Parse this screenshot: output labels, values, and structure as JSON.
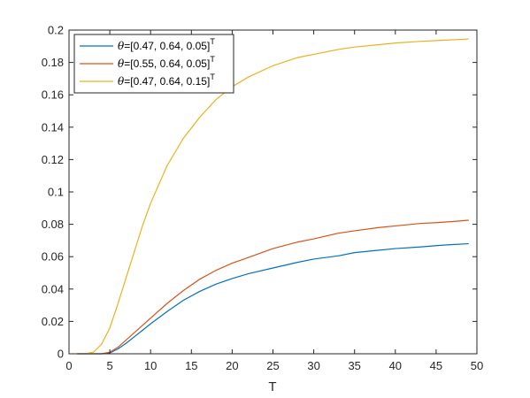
{
  "chart_data": {
    "type": "line",
    "xlabel": "T",
    "ylabel": "",
    "xlim": [
      0,
      50
    ],
    "ylim": [
      0,
      0.2
    ],
    "xticks": [
      "0",
      "5",
      "10",
      "15",
      "20",
      "25",
      "30",
      "35",
      "40",
      "45",
      "50"
    ],
    "yticks": [
      "0",
      "0.02",
      "0.04",
      "0.06",
      "0.08",
      "0.1",
      "0.12",
      "0.14",
      "0.16",
      "0.18",
      "0.2"
    ],
    "grid": false,
    "legend_position": "top-left",
    "x": [
      1,
      2,
      3,
      4,
      5,
      6,
      7,
      8,
      9,
      10,
      12,
      14,
      16,
      18,
      20,
      22,
      25,
      28,
      30,
      33,
      35,
      38,
      40,
      43,
      45,
      47,
      49
    ],
    "series": [
      {
        "name": "θ=[0.47, 0.64, 0.05]",
        "name_parts": {
          "symbol": "θ",
          "text": "=[0.47, 0.64, 0.05]",
          "sup": "T"
        },
        "color": "#0072BD",
        "values": [
          0,
          0,
          0,
          0,
          0.0005,
          0.003,
          0.0065,
          0.0105,
          0.0145,
          0.0185,
          0.026,
          0.033,
          0.0385,
          0.043,
          0.0465,
          0.0495,
          0.053,
          0.0565,
          0.0585,
          0.0605,
          0.0625,
          0.064,
          0.065,
          0.066,
          0.0668,
          0.0675,
          0.068
        ]
      },
      {
        "name": "θ=[0.55, 0.64, 0.05]",
        "name_parts": {
          "symbol": "θ",
          "text": "=[0.55, 0.64, 0.05]",
          "sup": "T"
        },
        "color": "#D95319",
        "values": [
          0,
          0,
          0,
          0,
          0.001,
          0.004,
          0.0085,
          0.013,
          0.0175,
          0.022,
          0.031,
          0.039,
          0.046,
          0.0515,
          0.056,
          0.0595,
          0.065,
          0.069,
          0.071,
          0.0745,
          0.076,
          0.078,
          0.079,
          0.0805,
          0.081,
          0.0817,
          0.0825
        ]
      },
      {
        "name": "θ=[0.47, 0.64, 0.15]",
        "name_parts": {
          "symbol": "θ",
          "text": "=[0.47, 0.64, 0.15]",
          "sup": "T"
        },
        "color": "#EDB120",
        "values": [
          0,
          0,
          0.001,
          0.006,
          0.016,
          0.031,
          0.047,
          0.063,
          0.079,
          0.093,
          0.116,
          0.133,
          0.146,
          0.157,
          0.165,
          0.171,
          0.178,
          0.183,
          0.185,
          0.188,
          0.1895,
          0.191,
          0.192,
          0.193,
          0.1935,
          0.194,
          0.1945
        ]
      }
    ]
  }
}
